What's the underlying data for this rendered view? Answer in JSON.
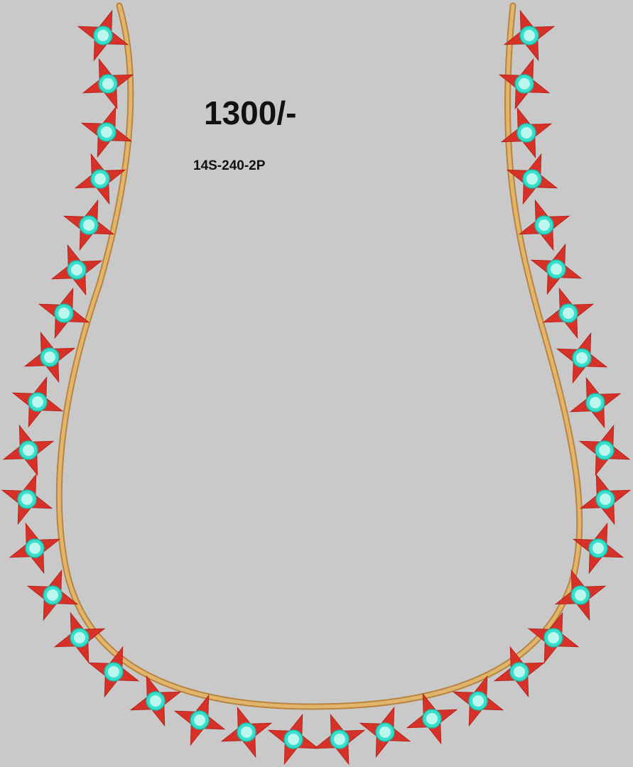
{
  "design": {
    "price": "1300/-",
    "code": "14S-240-2P"
  },
  "colors": {
    "background": "#c9c9c9",
    "cord": "#d9a861",
    "cord_shadow": "#b88440",
    "star": "#e0352b",
    "star_dark": "#b8241d",
    "bead": "#38e0cc",
    "bead_center": "#e8fffb"
  },
  "motif": {
    "star_icon": "four-point-star",
    "bead_icon": "sequin-bead",
    "stars_per_side": 17
  }
}
